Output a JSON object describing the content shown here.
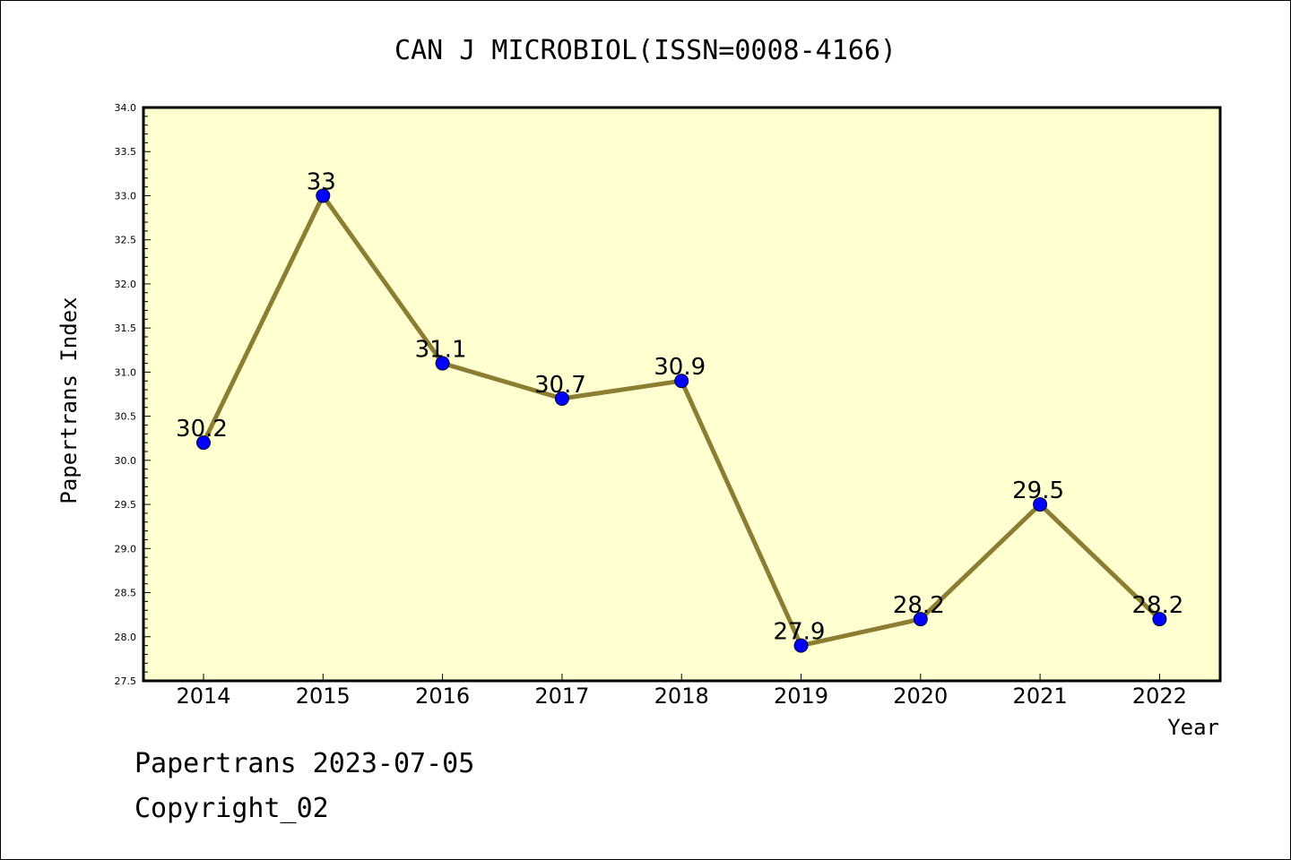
{
  "chart_data": {
    "type": "line",
    "title": "CAN J MICROBIOL(ISSN=0008-4166)",
    "xlabel": "Year",
    "ylabel": "Papertrans Index",
    "categories": [
      "2014",
      "2015",
      "2016",
      "2017",
      "2018",
      "2019",
      "2020",
      "2021",
      "2022"
    ],
    "values": [
      30.2,
      33,
      31.1,
      30.7,
      30.9,
      27.9,
      28.2,
      29.5,
      28.2
    ],
    "data_labels": [
      "30.2",
      "33",
      "31.1",
      "30.7",
      "30.9",
      "27.9",
      "28.2",
      "29.5",
      "28.2"
    ],
    "ylim": [
      27.5,
      34.0
    ],
    "yticks": [
      "27.5",
      "28.0",
      "28.5",
      "29.0",
      "29.5",
      "30.0",
      "30.5",
      "31.0",
      "31.5",
      "32.0",
      "32.5",
      "33.0",
      "33.5",
      "34.0"
    ],
    "grid": false,
    "colors": {
      "line": "#8b7d32",
      "marker": "#0000ff",
      "plot_background": "#ffffd0"
    }
  },
  "footer": {
    "line1": "Papertrans 2023-07-05",
    "line2": "Copyright_02"
  }
}
